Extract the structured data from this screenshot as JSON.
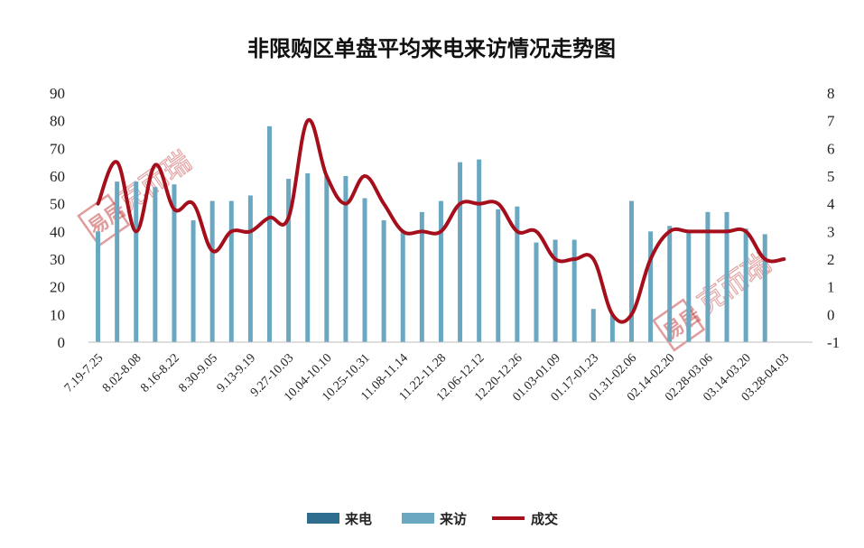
{
  "chart_data": {
    "type": "bar",
    "title": "非限购区单盘平均来电来访情况走势图",
    "categories": [
      "7.19-7.25",
      "",
      "8.02-8.08",
      "",
      "8.16-8.22",
      "",
      "8.30-9.05",
      "",
      "9.13-9.19",
      "",
      "9.27-10.03",
      "",
      "10.04-10.10",
      "",
      "10.25-10.31",
      "",
      "11.08-11.14",
      "",
      "11.22-11.28",
      "",
      "12.06-12.12",
      "",
      "12.20-12.26",
      "",
      "01.03-01.09",
      "",
      "01.17-01.23",
      "",
      "01.31-02.06",
      "",
      "02.14-02.20",
      "",
      "02.28-03.06",
      "",
      "03.14-03.20",
      "",
      "03.28-04.03",
      ""
    ],
    "series": [
      {
        "name": "来电",
        "axis": "left",
        "color": "#2e6d8e",
        "values": [
          null,
          null,
          null,
          null,
          null,
          null,
          null,
          null,
          null,
          null,
          null,
          null,
          null,
          null,
          null,
          null,
          null,
          null,
          null,
          null,
          null,
          null,
          null,
          null,
          null,
          null,
          null,
          null,
          null,
          null,
          null,
          null,
          null,
          null,
          null,
          null,
          null,
          null
        ]
      },
      {
        "name": "来访",
        "axis": "left",
        "color": "#6aa8c2",
        "values": [
          40,
          58,
          58,
          56,
          57,
          44,
          51,
          51,
          53,
          78,
          59,
          61,
          60,
          60,
          52,
          44,
          40,
          47,
          51,
          65,
          66,
          48,
          49,
          36,
          37,
          37,
          12,
          10,
          51,
          40,
          42,
          40,
          47,
          47,
          41,
          39,
          null,
          null
        ]
      },
      {
        "name": "成交",
        "axis": "right",
        "color": "#a50f1c",
        "values": [
          4,
          5.5,
          3,
          5.4,
          3.8,
          4,
          2.3,
          3,
          3,
          3.5,
          3.5,
          7,
          5,
          4,
          5,
          4,
          3,
          3,
          3,
          4,
          4,
          4,
          3,
          3,
          2,
          2,
          2,
          0,
          0,
          2,
          3,
          3,
          3,
          3,
          3,
          2,
          2,
          null
        ]
      }
    ],
    "ylim_left": [
      0,
      90
    ],
    "yticks_left": [
      "0",
      "10",
      "20",
      "30",
      "40",
      "50",
      "60",
      "70",
      "80",
      "90"
    ],
    "ylim_right": [
      -1,
      8
    ],
    "yticks_right": [
      "-1",
      "0",
      "1",
      "2",
      "3",
      "4",
      "5",
      "6",
      "7",
      "8"
    ],
    "legend": [
      "来电",
      "来访",
      "成交"
    ],
    "legend_position": "bottom",
    "grid": false
  },
  "watermark": {
    "text": "克而瑞",
    "seal": "易居"
  }
}
